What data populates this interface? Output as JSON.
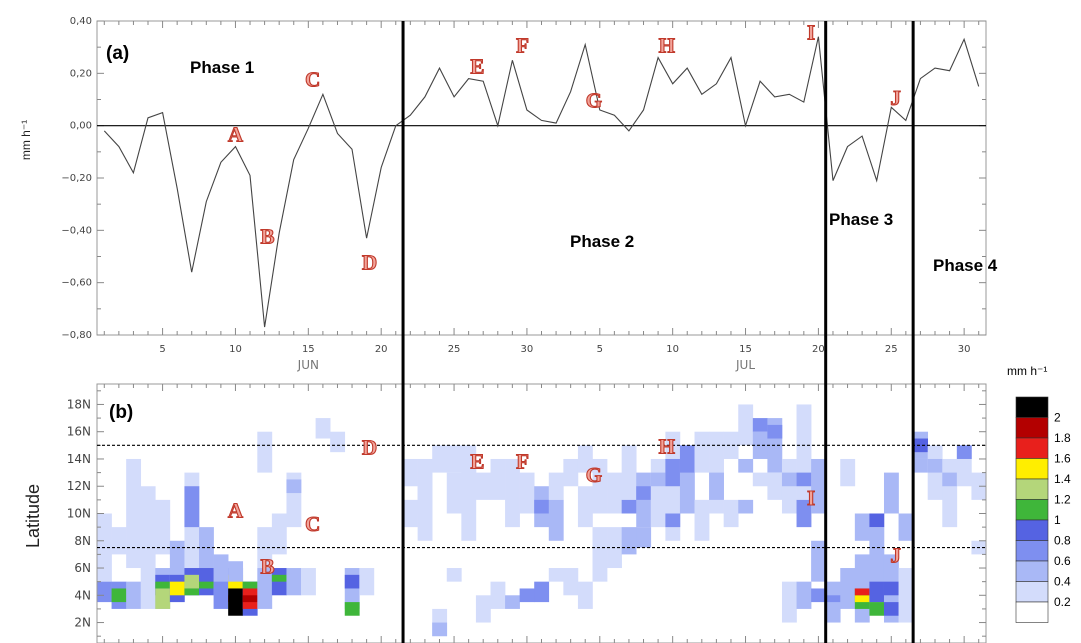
{
  "chart_data": [
    {
      "panel_label": "(a)",
      "type": "line",
      "ylabel": "mm h⁻¹",
      "ylim": [
        -0.8,
        0.4
      ],
      "yticks": [
        "0,40",
        "0,20",
        "0,00",
        "−0,20",
        "−0,40",
        "−0,60",
        "−0,80"
      ],
      "ytick_values": [
        0.4,
        0.2,
        0.0,
        -0.2,
        -0.4,
        -0.6,
        -0.8
      ],
      "xticks": [
        "5",
        "10",
        "15",
        "20",
        "25",
        "30",
        "5",
        "10",
        "15",
        "20",
        "25",
        "30"
      ],
      "xtick_days": [
        5,
        10,
        15,
        20,
        25,
        30,
        35,
        40,
        45,
        50,
        55,
        60
      ],
      "months": [
        "JUN",
        "JUL"
      ],
      "month_center_days": [
        15,
        45
      ],
      "x_range_days": [
        0.5,
        61.5
      ],
      "grid": false,
      "x_day": [
        1,
        2,
        3,
        4,
        5,
        6,
        7,
        8,
        9,
        10,
        11,
        12,
        13,
        14,
        15,
        16,
        17,
        18,
        19,
        20,
        21,
        22,
        23,
        24,
        25,
        26,
        27,
        28,
        29,
        30,
        31,
        32,
        33,
        34,
        35,
        36,
        37,
        38,
        39,
        40,
        41,
        42,
        43,
        44,
        45,
        46,
        47,
        48,
        49,
        50,
        51,
        52,
        53,
        54,
        55,
        56,
        57,
        58,
        59,
        60,
        61
      ],
      "values": [
        -0.02,
        -0.08,
        -0.18,
        0.03,
        0.05,
        -0.24,
        -0.56,
        -0.29,
        -0.14,
        -0.08,
        -0.19,
        -0.77,
        -0.41,
        -0.13,
        -0.01,
        0.12,
        -0.03,
        -0.09,
        -0.43,
        -0.16,
        0.0,
        0.04,
        0.11,
        0.22,
        0.11,
        0.18,
        0.17,
        0.0,
        0.25,
        0.06,
        0.02,
        0.01,
        0.13,
        0.31,
        0.06,
        0.04,
        -0.02,
        0.06,
        0.26,
        0.16,
        0.22,
        0.12,
        0.16,
        0.26,
        0.0,
        0.17,
        0.11,
        0.12,
        0.09,
        0.34,
        -0.21,
        -0.08,
        -0.04,
        -0.21,
        0.07,
        0.02,
        0.18,
        0.22,
        0.21,
        0.33,
        0.15
      ],
      "phases": [
        {
          "name": "Phase 1"
        },
        {
          "name": "Phase 2"
        },
        {
          "name": "Phase 3"
        },
        {
          "name": "Phase 4"
        }
      ],
      "phase_boundaries_day": [
        21.5,
        50.5,
        56.5
      ],
      "events": [
        {
          "label": "A",
          "day": 10,
          "y": -0.03
        },
        {
          "label": "B",
          "day": 12.2,
          "y": -0.42
        },
        {
          "label": "C",
          "day": 15.3,
          "y": 0.18
        },
        {
          "label": "D",
          "day": 19.2,
          "y": -0.52
        },
        {
          "label": "E",
          "day": 26.6,
          "y": 0.23
        },
        {
          "label": "F",
          "day": 29.7,
          "y": 0.31
        },
        {
          "label": "G",
          "day": 34.6,
          "y": 0.1
        },
        {
          "label": "H",
          "day": 39.6,
          "y": 0.31
        },
        {
          "label": "I",
          "day": 49.5,
          "y": 0.36
        },
        {
          "label": "J",
          "day": 55.3,
          "y": 0.11
        }
      ]
    },
    {
      "panel_label": "(b)",
      "type": "heatmap",
      "ylabel": "Latitude",
      "colorbar_title": "mm h⁻¹",
      "yticks": [
        "18N",
        "16N",
        "14N",
        "12N",
        "10N",
        "8N",
        "6N",
        "4N",
        "2N"
      ],
      "ytick_values": [
        18,
        16,
        14,
        12,
        10,
        8,
        6,
        4,
        2
      ],
      "y_range": [
        0.5,
        19.5
      ],
      "x_range_days": [
        0.5,
        61.5
      ],
      "reference_lines_lat": [
        15.0,
        7.5
      ],
      "colorbar": [
        {
          "value": "2",
          "color": "#000000"
        },
        {
          "value": "1.8",
          "color": "#b30000"
        },
        {
          "value": "1.6",
          "color": "#e8201c"
        },
        {
          "value": "1.4",
          "color": "#ffee00"
        },
        {
          "value": "1.2",
          "color": "#b4d67a"
        },
        {
          "value": "1",
          "color": "#3fb63a"
        },
        {
          "value": "0.8",
          "color": "#5563e2"
        },
        {
          "value": "0.6",
          "color": "#7e8ff0"
        },
        {
          "value": "0.4",
          "color": "#a9b8f6"
        },
        {
          "value": "0.2",
          "color": "#d3dcfb"
        },
        {
          "value": "",
          "color": "#ffffff"
        }
      ],
      "cells_columns": [
        "day",
        "lat_min",
        "lat_max",
        "value"
      ],
      "cells": [
        [
          1,
          5,
          10,
          0.3
        ],
        [
          1,
          3.5,
          5,
          0.6
        ],
        [
          2,
          3,
          5,
          0.6
        ],
        [
          2,
          3.5,
          4.5,
          1.0
        ],
        [
          2,
          7,
          9,
          0.3
        ],
        [
          3,
          6,
          14,
          0.2
        ],
        [
          3,
          3,
          5,
          0.4
        ],
        [
          4,
          3,
          12,
          0.2
        ],
        [
          5,
          7,
          11,
          0.3
        ],
        [
          5,
          3,
          6,
          0.5
        ],
        [
          5,
          4,
          5.5,
          0.9
        ],
        [
          5,
          3,
          4.5,
          1.2
        ],
        [
          5,
          4.5,
          5,
          1.0
        ],
        [
          6,
          4,
          8,
          0.4
        ],
        [
          6,
          3.5,
          5.5,
          0.8
        ],
        [
          6,
          4,
          5,
          1.4
        ],
        [
          7,
          6,
          13,
          0.3
        ],
        [
          7,
          9,
          12,
          0.7
        ],
        [
          7,
          4,
          6,
          0.8
        ],
        [
          7,
          4.5,
          5.5,
          1.2
        ],
        [
          7,
          4,
          4.5,
          1.0
        ],
        [
          8,
          5,
          9,
          0.4
        ],
        [
          8,
          4,
          6,
          0.8
        ],
        [
          8,
          4.5,
          5,
          1.0
        ],
        [
          9,
          4,
          7,
          0.4
        ],
        [
          9,
          3,
          5,
          0.6
        ],
        [
          10,
          3,
          6,
          0.6
        ],
        [
          10,
          4.5,
          5.5,
          1.4
        ],
        [
          10,
          3.5,
          4,
          1.7
        ],
        [
          10,
          3,
          3.5,
          1.2
        ],
        [
          10,
          2.5,
          4.5,
          2.0
        ],
        [
          10,
          5,
          6.5,
          0.5
        ],
        [
          11,
          2.5,
          5,
          0.8
        ],
        [
          11,
          3,
          4.5,
          1.6
        ],
        [
          11,
          3.5,
          4,
          1.9
        ],
        [
          11,
          4.5,
          5,
          1.0
        ],
        [
          12,
          3,
          6,
          0.5
        ],
        [
          12,
          13,
          16,
          0.3
        ],
        [
          12,
          6,
          9,
          0.2
        ],
        [
          13,
          4,
          6,
          0.8
        ],
        [
          13,
          5,
          5.5,
          1.0
        ],
        [
          13,
          7,
          10,
          0.3
        ],
        [
          14,
          9,
          13,
          0.3
        ],
        [
          14,
          11.5,
          12.5,
          0.5
        ],
        [
          14,
          4,
          6,
          0.4
        ],
        [
          15,
          4,
          6,
          0.3
        ],
        [
          16,
          15.5,
          17,
          0.2
        ],
        [
          17,
          14.5,
          16,
          0.2
        ],
        [
          18,
          3,
          6,
          0.5
        ],
        [
          18,
          2.5,
          3.5,
          1.0
        ],
        [
          18,
          4.5,
          5.5,
          0.8
        ],
        [
          19,
          4,
          6,
          0.3
        ],
        [
          22,
          9,
          11,
          0.2
        ],
        [
          22,
          12,
          14,
          0.2
        ],
        [
          23,
          8,
          14,
          0.2
        ],
        [
          23,
          10,
          12,
          0.3
        ],
        [
          24,
          13,
          15,
          0.2
        ],
        [
          24,
          1,
          3,
          0.2
        ],
        [
          24,
          1,
          2,
          0.4
        ],
        [
          25,
          13,
          15,
          0.3
        ],
        [
          25,
          10,
          13,
          0.2
        ],
        [
          25,
          5,
          6,
          0.2
        ],
        [
          26,
          8,
          15,
          0.2
        ],
        [
          26,
          13,
          14,
          0.3
        ],
        [
          27,
          11,
          13,
          0.2
        ],
        [
          27,
          2,
          4,
          0.2
        ],
        [
          28,
          11,
          14,
          0.2
        ],
        [
          28,
          3,
          5,
          0.3
        ],
        [
          29,
          9,
          14,
          0.2
        ],
        [
          29,
          3,
          4,
          0.5
        ],
        [
          30,
          10,
          13,
          0.3
        ],
        [
          30,
          3.5,
          4.5,
          0.7
        ],
        [
          31,
          9,
          12,
          0.4
        ],
        [
          31,
          10,
          11,
          0.7
        ],
        [
          31,
          3.5,
          5,
          0.6
        ],
        [
          32,
          11,
          13,
          0.3
        ],
        [
          32,
          8,
          11,
          0.5
        ],
        [
          32,
          5,
          6,
          0.3
        ],
        [
          33,
          12,
          14,
          0.2
        ],
        [
          33,
          4,
          6,
          0.3
        ],
        [
          34,
          13,
          15,
          0.2
        ],
        [
          34,
          9,
          12,
          0.3
        ],
        [
          34,
          3,
          5,
          0.2
        ],
        [
          35,
          10,
          14,
          0.3
        ],
        [
          35,
          5,
          9,
          0.3
        ],
        [
          36,
          10,
          13,
          0.3
        ],
        [
          36,
          6,
          9,
          0.3
        ],
        [
          37,
          11,
          15,
          0.3
        ],
        [
          37,
          10,
          11,
          0.6
        ],
        [
          37,
          7,
          9,
          0.4
        ],
        [
          38,
          9,
          13,
          0.4
        ],
        [
          38,
          11,
          12,
          0.7
        ],
        [
          38,
          7.5,
          9,
          0.5
        ],
        [
          39,
          9,
          14,
          0.3
        ],
        [
          39,
          12,
          13,
          0.5
        ],
        [
          40,
          8,
          16,
          0.3
        ],
        [
          40,
          12,
          14,
          0.6
        ],
        [
          40,
          9,
          10,
          0.7
        ],
        [
          41,
          10,
          14,
          0.4
        ],
        [
          41,
          13,
          15,
          0.6
        ],
        [
          42,
          13,
          16,
          0.3
        ],
        [
          42,
          8,
          11,
          0.3
        ],
        [
          43,
          10,
          16,
          0.3
        ],
        [
          43,
          11,
          13,
          0.5
        ],
        [
          44,
          14,
          16,
          0.3
        ],
        [
          44,
          9,
          11,
          0.3
        ],
        [
          45,
          15,
          18,
          0.2
        ],
        [
          45,
          13,
          14,
          0.4
        ],
        [
          45,
          10,
          11,
          0.5
        ],
        [
          46,
          14,
          16,
          0.4
        ],
        [
          46,
          16,
          17,
          0.6
        ],
        [
          46,
          12,
          13,
          0.3
        ],
        [
          47,
          13,
          17,
          0.4
        ],
        [
          47,
          15.5,
          16.5,
          0.7
        ],
        [
          47,
          11,
          13,
          0.3
        ],
        [
          48,
          10,
          14,
          0.3
        ],
        [
          48,
          12,
          13,
          0.5
        ],
        [
          48,
          2,
          5,
          0.3
        ],
        [
          49,
          11,
          18,
          0.2
        ],
        [
          49,
          12,
          13,
          0.6
        ],
        [
          49,
          9,
          11,
          0.6
        ],
        [
          49,
          3,
          5,
          0.4
        ],
        [
          50,
          10,
          14,
          0.5
        ],
        [
          50,
          5,
          8,
          0.4
        ],
        [
          50,
          3.5,
          4.5,
          0.7
        ],
        [
          51,
          2,
          5,
          0.4
        ],
        [
          51,
          3.5,
          4,
          0.6
        ],
        [
          52,
          3,
          6,
          0.4
        ],
        [
          52,
          12,
          14,
          0.2
        ],
        [
          53,
          2,
          7,
          0.4
        ],
        [
          53,
          8,
          10,
          0.5
        ],
        [
          53,
          3,
          4.5,
          1.1
        ],
        [
          53,
          3.5,
          4,
          1.4
        ],
        [
          53,
          4,
          4.5,
          1.6
        ],
        [
          54,
          3,
          9,
          0.5
        ],
        [
          54,
          3.5,
          5,
          0.8
        ],
        [
          54,
          2.5,
          3.5,
          1.0
        ],
        [
          54,
          9,
          10,
          0.9
        ],
        [
          55,
          2,
          7,
          0.5
        ],
        [
          55,
          4,
          5,
          0.8
        ],
        [
          55,
          2.5,
          3.5,
          0.9
        ],
        [
          55,
          10,
          13,
          0.4
        ],
        [
          56,
          2,
          6,
          0.3
        ],
        [
          56,
          8,
          10,
          0.5
        ],
        [
          57,
          14,
          16,
          0.5
        ],
        [
          57,
          14.5,
          15.5,
          0.9
        ],
        [
          57,
          13,
          14,
          0.4
        ],
        [
          58,
          11,
          15,
          0.3
        ],
        [
          58,
          13,
          14,
          0.4
        ],
        [
          59,
          9,
          14,
          0.3
        ],
        [
          59,
          12,
          13,
          0.4
        ],
        [
          60,
          12,
          15,
          0.3
        ],
        [
          60,
          14,
          15,
          0.6
        ],
        [
          61,
          11,
          13,
          0.3
        ],
        [
          61,
          7,
          8,
          0.2
        ]
      ],
      "events": [
        {
          "label": "A",
          "day": 10,
          "lat": 10.3
        },
        {
          "label": "B",
          "day": 12.2,
          "lat": 6.2
        },
        {
          "label": "C",
          "day": 15.3,
          "lat": 9.3
        },
        {
          "label": "D",
          "day": 19.2,
          "lat": 14.9
        },
        {
          "label": "E",
          "day": 26.6,
          "lat": 13.9
        },
        {
          "label": "F",
          "day": 29.7,
          "lat": 13.9
        },
        {
          "label": "G",
          "day": 34.6,
          "lat": 12.9
        },
        {
          "label": "H",
          "day": 39.6,
          "lat": 15.0
        },
        {
          "label": "I",
          "day": 49.5,
          "lat": 11.2
        },
        {
          "label": "J",
          "day": 55.3,
          "lat": 7.0
        }
      ]
    }
  ]
}
